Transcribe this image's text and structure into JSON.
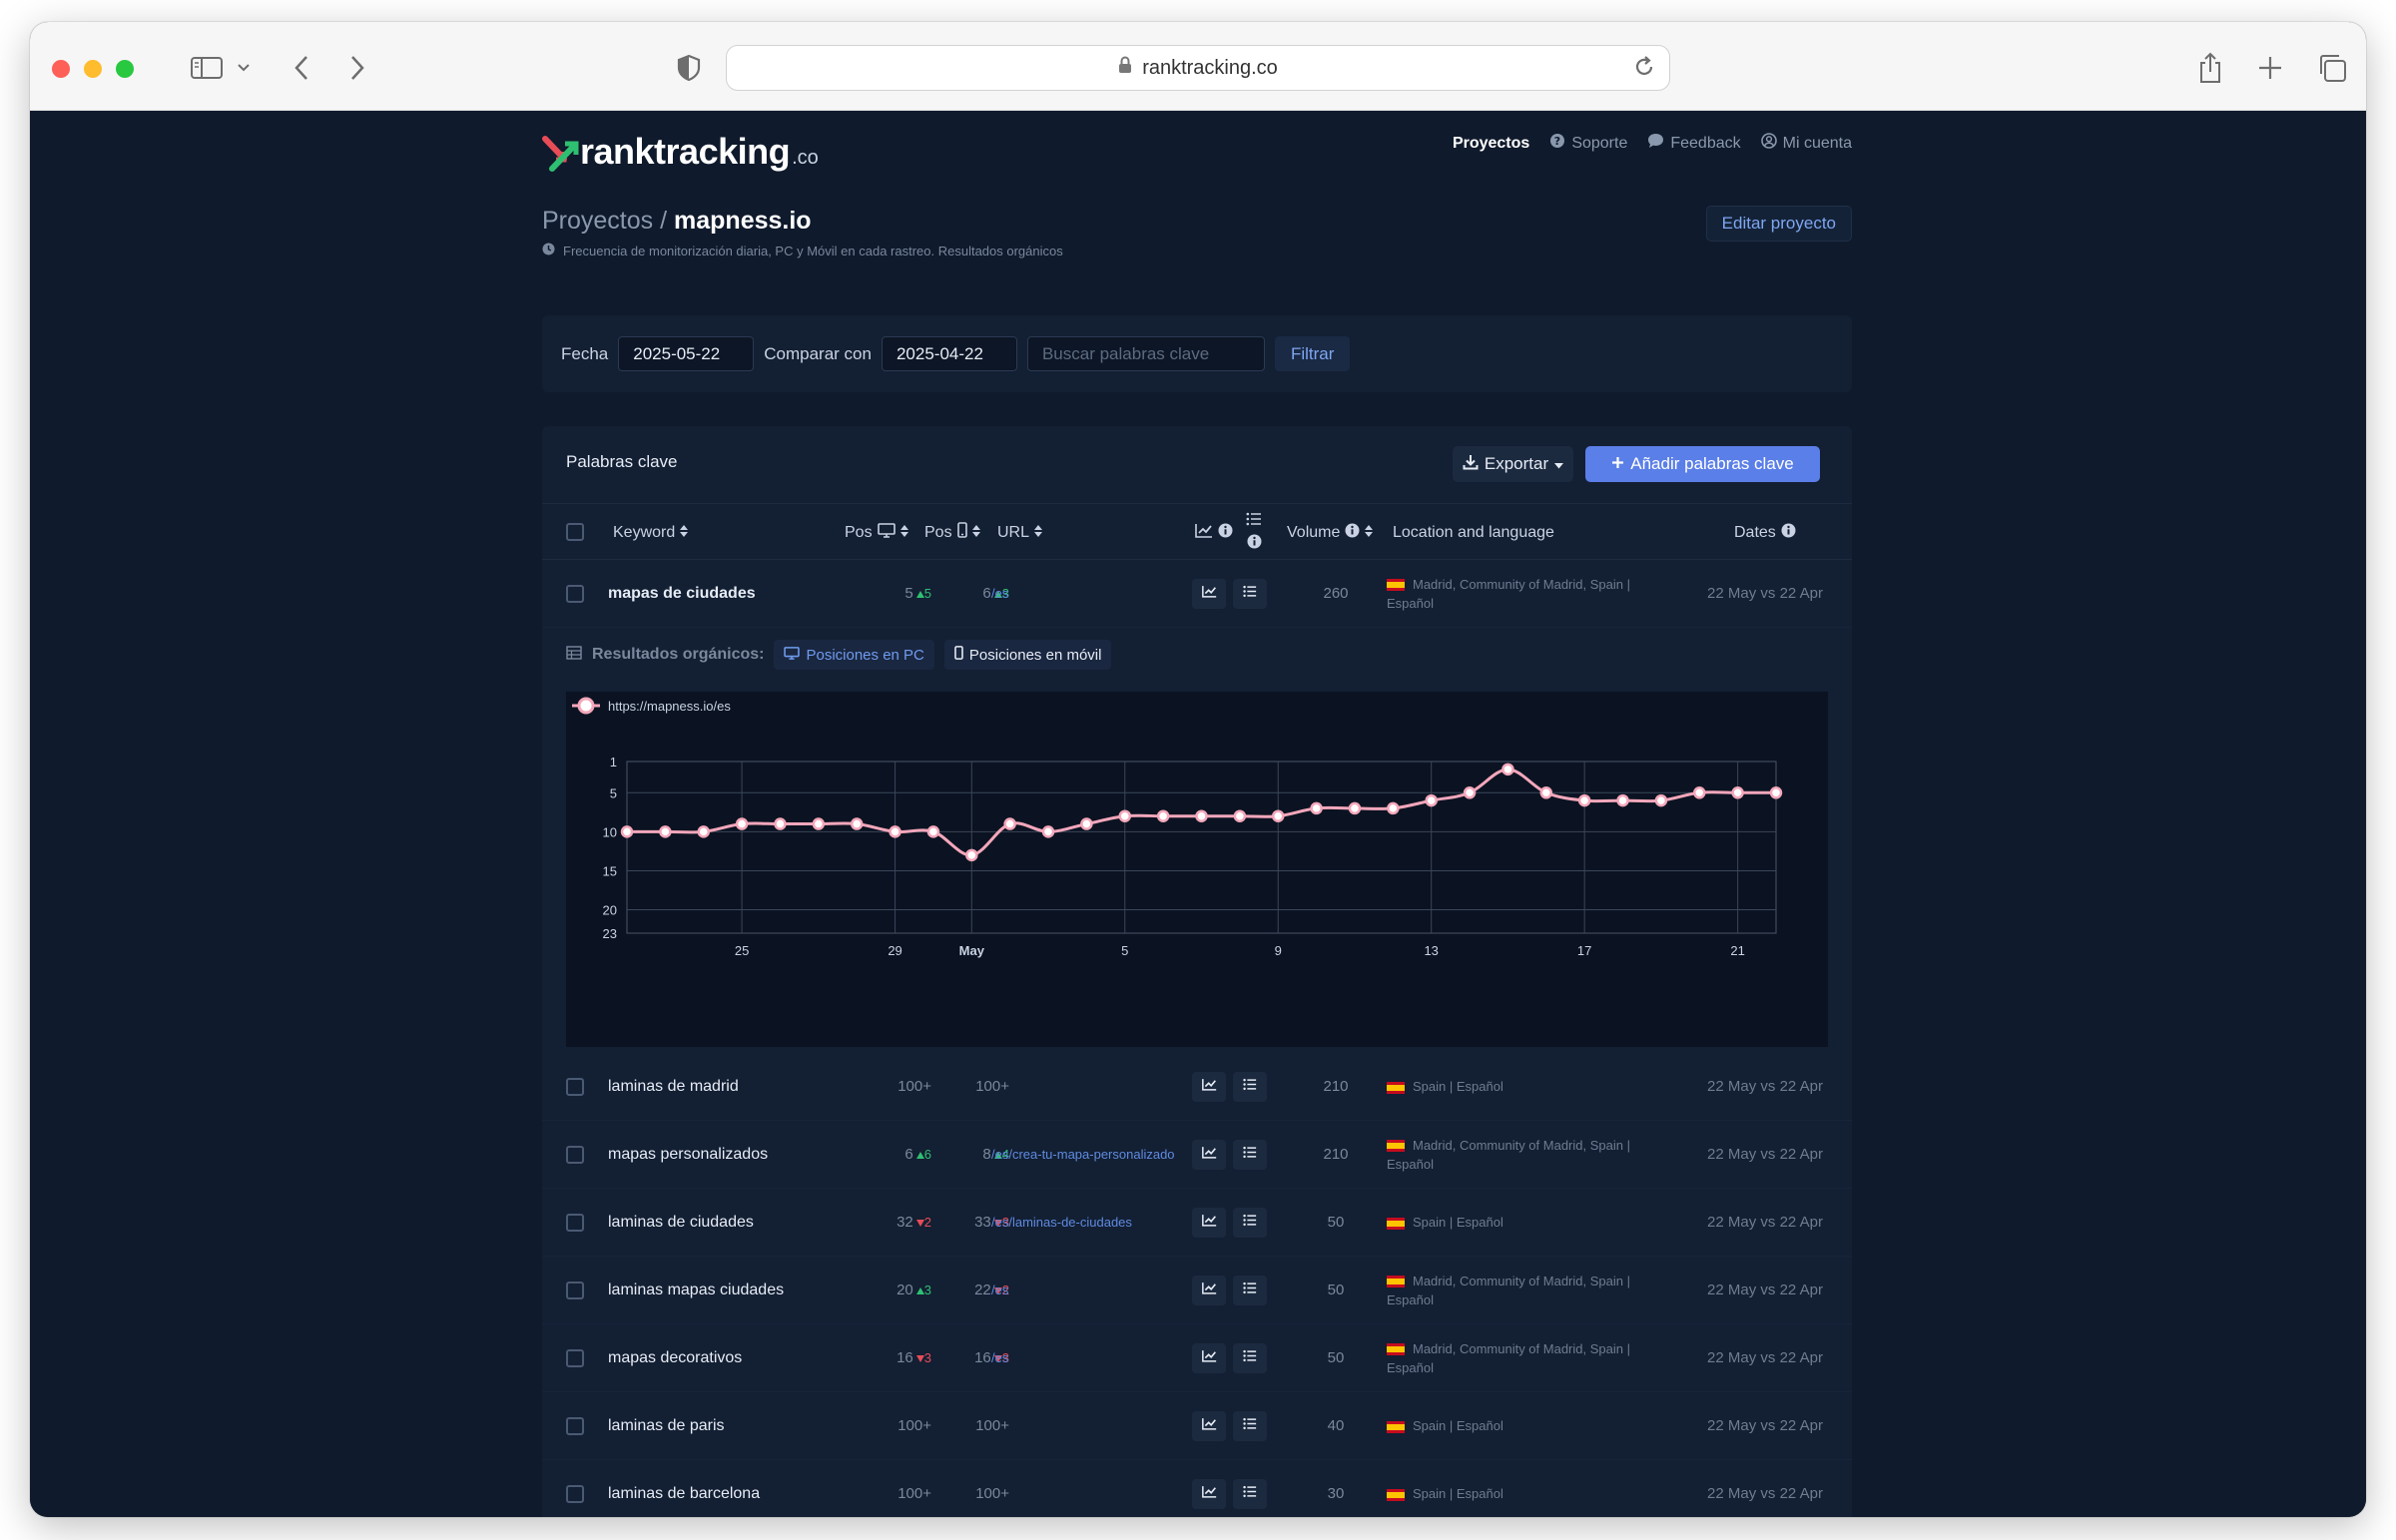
{
  "browser": {
    "address": "ranktracking.co"
  },
  "header": {
    "logo_text": "ranktracking",
    "logo_tld": ".co",
    "nav": [
      {
        "label": "Proyectos",
        "icon": "",
        "active": true
      },
      {
        "label": "Soporte",
        "icon": "help-circle-icon",
        "active": false
      },
      {
        "label": "Feedback",
        "icon": "comment-icon",
        "active": false
      },
      {
        "label": "Mi cuenta",
        "icon": "user-circle-icon",
        "active": false
      }
    ]
  },
  "project": {
    "crumb_root": "Proyectos /",
    "name": "mapness.io",
    "note": "Frecuencia de monitorización diaria, PC y Móvil en cada rastreo. Resultados orgánicos",
    "edit_label": "Editar proyecto"
  },
  "filter": {
    "fecha_label": "Fecha",
    "fecha_value": "2025-05-22",
    "compare_label": "Comparar con",
    "compare_value": "2025-04-22",
    "search_placeholder": "Buscar palabras clave",
    "button_label": "Filtrar"
  },
  "keywords_card": {
    "title": "Palabras clave",
    "export_label": "Exportar",
    "add_label": "Añadir palabras clave",
    "columns": {
      "keyword": "Keyword",
      "pos_pc": "Pos",
      "pos_mobile": "Pos",
      "url": "URL",
      "volume": "Volume",
      "location": "Location and language",
      "dates": "Dates"
    },
    "expanded": {
      "label": "Resultados orgánicos:",
      "tab_pc": "Posiciones en PC",
      "tab_mobile": "Posiciones en móvil"
    },
    "rows": [
      {
        "keyword": "mapas de ciudades",
        "pc": "5",
        "pc_delta": "5",
        "pc_dir": "up",
        "mob": "6",
        "mob_delta": "3",
        "mob_dir": "up",
        "url": "/es",
        "volume": "260",
        "location": "Madrid, Community of Madrid, Spain | Español",
        "dates": "22 May vs 22 Apr",
        "bold": true
      },
      {
        "keyword": "laminas de madrid",
        "pc": "100+",
        "pc_delta": "",
        "pc_dir": "",
        "mob": "100+",
        "mob_delta": "",
        "mob_dir": "",
        "url": "",
        "volume": "210",
        "location": "Spain | Español",
        "dates": "22 May vs 22 Apr"
      },
      {
        "keyword": "mapas personalizados",
        "pc": "6",
        "pc_delta": "6",
        "pc_dir": "up",
        "mob": "8",
        "mob_delta": "4",
        "mob_dir": "up",
        "url": "/es/crea-tu-mapa-personalizado",
        "volume": "210",
        "location": "Madrid, Community of Madrid, Spain | Español",
        "dates": "22 May vs 22 Apr"
      },
      {
        "keyword": "laminas de ciudades",
        "pc": "32",
        "pc_delta": "2",
        "pc_dir": "down",
        "mob": "33",
        "mob_delta": "3",
        "mob_dir": "down",
        "url": "/es/laminas-de-ciudades",
        "volume": "50",
        "location": "Spain | Español",
        "dates": "22 May vs 22 Apr"
      },
      {
        "keyword": "laminas mapas ciudades",
        "pc": "20",
        "pc_delta": "3",
        "pc_dir": "up",
        "mob": "22",
        "mob_delta": "2",
        "mob_dir": "down",
        "url": "/es",
        "volume": "50",
        "location": "Madrid, Community of Madrid, Spain | Español",
        "dates": "22 May vs 22 Apr"
      },
      {
        "keyword": "mapas decorativos",
        "pc": "16",
        "pc_delta": "3",
        "pc_dir": "down",
        "mob": "16",
        "mob_delta": "3",
        "mob_dir": "down",
        "url": "/es",
        "volume": "50",
        "location": "Madrid, Community of Madrid, Spain | Español",
        "dates": "22 May vs 22 Apr"
      },
      {
        "keyword": "laminas de paris",
        "pc": "100+",
        "pc_delta": "",
        "pc_dir": "",
        "mob": "100+",
        "mob_delta": "",
        "mob_dir": "",
        "url": "",
        "volume": "40",
        "location": "Spain | Español",
        "dates": "22 May vs 22 Apr"
      },
      {
        "keyword": "laminas de barcelona",
        "pc": "100+",
        "pc_delta": "",
        "pc_dir": "",
        "mob": "100+",
        "mob_delta": "",
        "mob_dir": "",
        "url": "",
        "volume": "30",
        "location": "Spain | Español",
        "dates": "22 May vs 22 Apr"
      }
    ]
  },
  "colors": {
    "page_bg": "#0f1a2c",
    "card_bg": "#131f33",
    "accent_blue": "#5b7fe8",
    "up_green": "#2fbf71",
    "down_red": "#e74c57",
    "series_pink": "#f4a7bb"
  },
  "chart_data": {
    "type": "line",
    "series": [
      {
        "name": "https://mapness.io/es",
        "x": [
          "2025-04-22",
          "2025-04-23",
          "2025-04-24",
          "2025-04-25",
          "2025-04-26",
          "2025-04-27",
          "2025-04-28",
          "2025-04-29",
          "2025-04-30",
          "2025-05-01",
          "2025-05-02",
          "2025-05-03",
          "2025-05-04",
          "2025-05-05",
          "2025-05-06",
          "2025-05-07",
          "2025-05-08",
          "2025-05-09",
          "2025-05-10",
          "2025-05-11",
          "2025-05-12",
          "2025-05-13",
          "2025-05-14",
          "2025-05-15",
          "2025-05-16",
          "2025-05-17",
          "2025-05-18",
          "2025-05-19",
          "2025-05-20",
          "2025-05-21",
          "2025-05-22"
        ],
        "values": [
          10,
          10,
          10,
          9,
          9,
          9,
          9,
          10,
          10,
          13,
          9,
          10,
          9,
          8,
          8,
          8,
          8,
          8,
          7,
          7,
          7,
          6,
          5,
          2,
          5,
          6,
          6,
          6,
          5,
          5,
          5
        ]
      }
    ],
    "x_tick_labels": [
      "25",
      "29",
      "May",
      "5",
      "9",
      "13",
      "17",
      "21"
    ],
    "x_tick_dates": [
      "2025-04-25",
      "2025-04-29",
      "2025-05-01",
      "2025-05-05",
      "2025-05-09",
      "2025-05-13",
      "2025-05-17",
      "2025-05-21"
    ],
    "y_ticks": [
      1,
      5,
      10,
      15,
      20,
      23
    ],
    "ylim": [
      1,
      23
    ],
    "y_reversed": true,
    "grid": true,
    "legend": "top-left"
  }
}
